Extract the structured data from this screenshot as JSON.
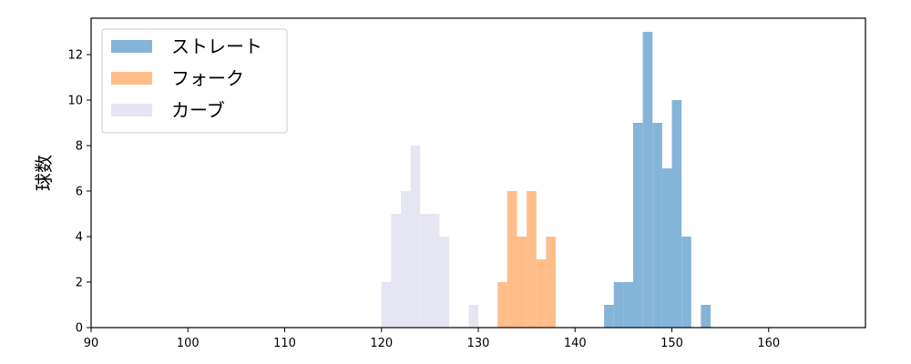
{
  "chart_data": {
    "type": "bar",
    "title": "",
    "xlabel": "",
    "ylabel": "球数",
    "xlim": [
      90,
      170
    ],
    "ylim": [
      0,
      13.6
    ],
    "xticks": [
      90,
      100,
      110,
      120,
      130,
      140,
      150,
      160
    ],
    "yticks": [
      0,
      2,
      4,
      6,
      8,
      10,
      12
    ],
    "grid": false,
    "legend_position": "top-left",
    "bin_width": 1,
    "series": [
      {
        "name": "ストレート",
        "color": "#84b4d8",
        "bins": [
          {
            "x": 143,
            "count": 1
          },
          {
            "x": 144,
            "count": 2
          },
          {
            "x": 145,
            "count": 2
          },
          {
            "x": 146,
            "count": 9
          },
          {
            "x": 147,
            "count": 13
          },
          {
            "x": 148,
            "count": 9
          },
          {
            "x": 149,
            "count": 7
          },
          {
            "x": 150,
            "count": 10
          },
          {
            "x": 151,
            "count": 4
          },
          {
            "x": 153,
            "count": 1
          }
        ]
      },
      {
        "name": "フォーク",
        "color": "#ffbd8a",
        "bins": [
          {
            "x": 132,
            "count": 2
          },
          {
            "x": 133,
            "count": 6
          },
          {
            "x": 134,
            "count": 4
          },
          {
            "x": 135,
            "count": 6
          },
          {
            "x": 136,
            "count": 3
          },
          {
            "x": 137,
            "count": 4
          }
        ]
      },
      {
        "name": "カーブ",
        "color": "#e6e6f2",
        "bins": [
          {
            "x": 120,
            "count": 2
          },
          {
            "x": 121,
            "count": 5
          },
          {
            "x": 122,
            "count": 6
          },
          {
            "x": 123,
            "count": 8
          },
          {
            "x": 124,
            "count": 5
          },
          {
            "x": 125,
            "count": 5
          },
          {
            "x": 126,
            "count": 4
          },
          {
            "x": 129,
            "count": 1
          }
        ]
      }
    ]
  }
}
